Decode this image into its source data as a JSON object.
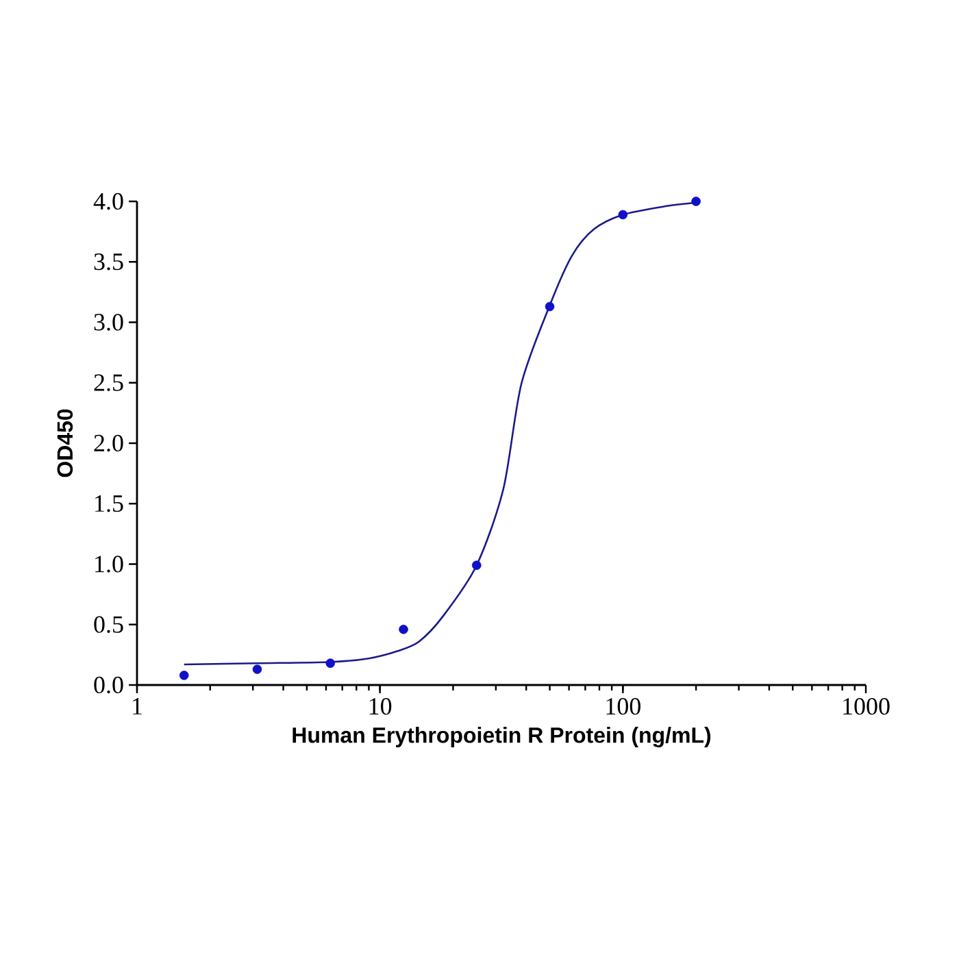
{
  "chart_data": {
    "type": "scatter",
    "xlabel": "Human Erythropoietin R Protein (ng/mL)",
    "ylabel": "OD450",
    "log": "x",
    "grid": false,
    "xlim": [
      1,
      1000
    ],
    "xticks": [
      1,
      10,
      100,
      1000
    ],
    "ylim": [
      0,
      4.0
    ],
    "yticks": [
      {
        "value": 0,
        "label": "0.0"
      },
      {
        "value": 0.5,
        "label": "0.5"
      },
      {
        "value": 1,
        "label": "1.0"
      },
      {
        "value": 1.5,
        "label": "1.5"
      },
      {
        "value": 2,
        "label": "2.0"
      },
      {
        "value": 2.5,
        "label": "2.5"
      },
      {
        "value": 3,
        "label": "3.0"
      },
      {
        "value": 3.5,
        "label": "3.5"
      },
      {
        "value": 4,
        "label": "4.0"
      }
    ],
    "series": [
      {
        "marker": "circle",
        "color": "#1010c8",
        "x": [
          1.5625,
          3.125,
          6.25,
          12.5,
          25,
          50,
          100,
          200
        ],
        "values": [
          0.08,
          0.13,
          0.18,
          0.46,
          0.99,
          3.13,
          3.89,
          4.0
        ]
      },
      {
        "type": "line",
        "marker": "none",
        "line_style": "solid",
        "color": "#1a1a8c",
        "x": [
          1.5625,
          3.125,
          6.2,
          9,
          11.8,
          14.5,
          18.2,
          25,
          32.2,
          38.2,
          50,
          61.7,
          76,
          100,
          150,
          200
        ],
        "values": [
          0.17,
          0.18,
          0.19,
          0.22,
          0.28,
          0.36,
          0.57,
          0.99,
          1.62,
          2.49,
          3.14,
          3.55,
          3.77,
          3.89,
          3.96,
          3.99
        ]
      }
    ]
  }
}
